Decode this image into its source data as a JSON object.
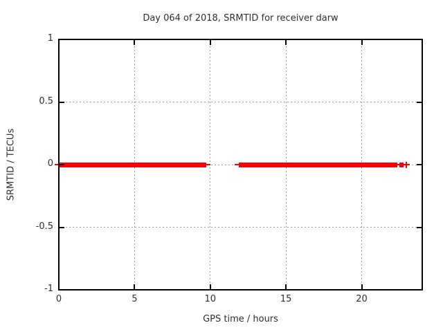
{
  "chart_data": {
    "type": "scatter",
    "title": "Day 064 of 2018, SRMTID for receiver darw",
    "xlabel": "GPS time / hours",
    "ylabel": "SRMTID / TECUs",
    "xlim": [
      0,
      24
    ],
    "ylim": [
      -1,
      1
    ],
    "xticks": [
      {
        "value": 0,
        "label": "0"
      },
      {
        "value": 5,
        "label": "5"
      },
      {
        "value": 10,
        "label": "10"
      },
      {
        "value": 15,
        "label": "15"
      },
      {
        "value": 20,
        "label": "20"
      }
    ],
    "yticks": [
      {
        "value": -1,
        "label": "-1"
      },
      {
        "value": -0.5,
        "label": "-0.5"
      },
      {
        "value": 0,
        "label": "0"
      },
      {
        "value": 0.5,
        "label": "0.5"
      },
      {
        "value": 1,
        "label": "1"
      }
    ],
    "grid": "dotted",
    "grid_color": "#a0a0a0",
    "border_color": "#000000",
    "legend": "none",
    "series": [
      {
        "name": "SRMTID",
        "color": "#ff0000",
        "marker": "plus",
        "y_value": 0,
        "segments": [
          {
            "start_hour": 0.0,
            "end_hour": 9.75
          },
          {
            "start_hour": 11.9,
            "end_hour": 22.35
          },
          {
            "start_hour": 22.5,
            "end_hour": 22.75
          }
        ],
        "isolated_points_hours": [
          22.95
        ]
      }
    ]
  }
}
